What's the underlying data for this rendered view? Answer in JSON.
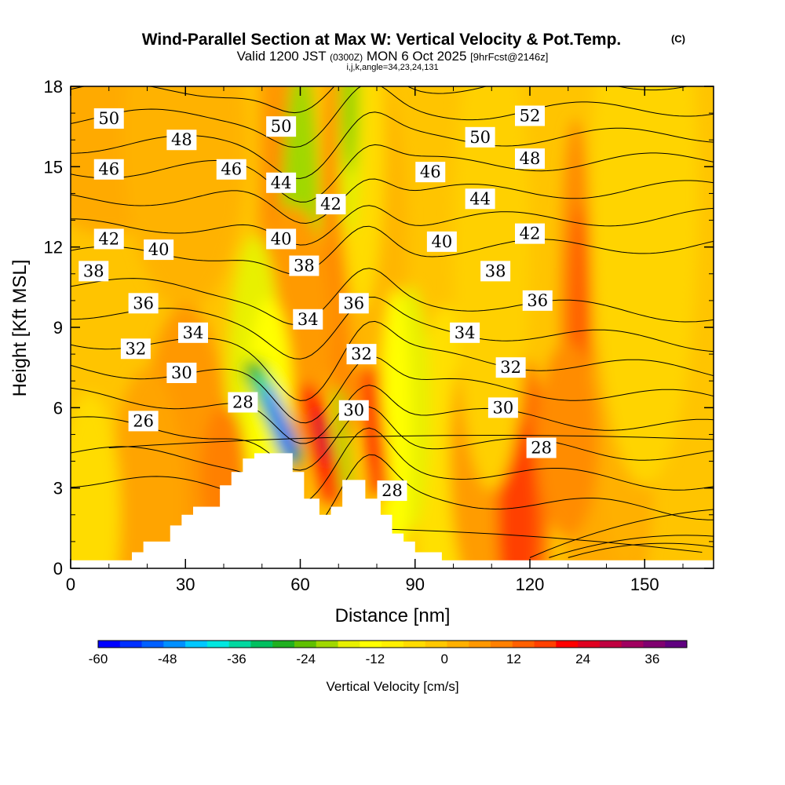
{
  "title": {
    "main": "Wind-Parallel Section at Max W: Vertical Velocity & Pot.Temp.",
    "copyright": "(C)",
    "valid_prefix": "Valid 1200 JST",
    "valid_utc": "(0300Z)",
    "valid_date": "MON 6 Oct 2025",
    "forecast": "[9hrFcst@2146z]",
    "params": "i,j,k,angle=34,23,24,131"
  },
  "chart_data": {
    "type": "heatmap",
    "xlabel": "Distance [nm]",
    "ylabel": "Height [Kft MSL]",
    "xlim": [
      0,
      168
    ],
    "ylim": [
      0,
      18
    ],
    "xticks": [
      "0",
      "30",
      "60",
      "90",
      "120",
      "150"
    ],
    "xtick_values": [
      0,
      30,
      60,
      90,
      120,
      150
    ],
    "yticks": [
      "0",
      "3",
      "6",
      "9",
      "12",
      "15",
      "18"
    ],
    "ytick_values": [
      0,
      3,
      6,
      9,
      12,
      15,
      18
    ],
    "colorbar": {
      "label": "Vertical Velocity [cm/s]",
      "range": [
        -60,
        42
      ],
      "tick_labels": [
        "-60",
        "-48",
        "-36",
        "-24",
        "-12",
        "0",
        "12",
        "24",
        "36"
      ],
      "tick_values": [
        -60,
        -48,
        -36,
        -24,
        -12,
        0,
        12,
        24,
        36
      ],
      "colors": [
        "#0000ff",
        "#0030ff",
        "#0060ff",
        "#0090ff",
        "#00c8ff",
        "#00e8e0",
        "#00d8a0",
        "#00c060",
        "#20b020",
        "#60c000",
        "#a0d800",
        "#e8f000",
        "#ffff00",
        "#fff000",
        "#ffdc00",
        "#ffc800",
        "#ffb000",
        "#ff9800",
        "#ff8000",
        "#ff6000",
        "#ff4000",
        "#ff0000",
        "#e00020",
        "#c00040",
        "#a00060",
        "#800070",
        "#600080"
      ]
    },
    "theta_contours": [
      {
        "label": "26",
        "theta": 26
      },
      {
        "label": "28",
        "theta": 28
      },
      {
        "label": "30",
        "theta": 30
      },
      {
        "label": "32",
        "theta": 32
      },
      {
        "label": "34",
        "theta": 34
      },
      {
        "label": "36",
        "theta": 36
      },
      {
        "label": "38",
        "theta": 38
      },
      {
        "label": "40",
        "theta": 40
      },
      {
        "label": "42",
        "theta": 42
      },
      {
        "label": "44",
        "theta": 44
      },
      {
        "label": "46",
        "theta": 46
      },
      {
        "label": "48",
        "theta": 48
      },
      {
        "label": "50",
        "theta": 50
      },
      {
        "label": "52",
        "theta": 52
      }
    ],
    "contour_label_positions": [
      {
        "text": "50",
        "x": 10,
        "y": 16.8
      },
      {
        "text": "48",
        "x": 29,
        "y": 16.0
      },
      {
        "text": "46",
        "x": 10,
        "y": 14.9
      },
      {
        "text": "46",
        "x": 42,
        "y": 14.9
      },
      {
        "text": "50",
        "x": 55,
        "y": 16.5
      },
      {
        "text": "44",
        "x": 55,
        "y": 14.4
      },
      {
        "text": "40",
        "x": 55,
        "y": 12.3
      },
      {
        "text": "42",
        "x": 68,
        "y": 13.6
      },
      {
        "text": "38",
        "x": 61,
        "y": 11.3
      },
      {
        "text": "42",
        "x": 10,
        "y": 12.3
      },
      {
        "text": "40",
        "x": 23,
        "y": 11.9
      },
      {
        "text": "38",
        "x": 6,
        "y": 11.1
      },
      {
        "text": "36",
        "x": 19,
        "y": 9.9
      },
      {
        "text": "34",
        "x": 32,
        "y": 8.8
      },
      {
        "text": "32",
        "x": 17,
        "y": 8.2
      },
      {
        "text": "30",
        "x": 29,
        "y": 7.3
      },
      {
        "text": "28",
        "x": 45,
        "y": 6.2
      },
      {
        "text": "26",
        "x": 19,
        "y": 5.5
      },
      {
        "text": "34",
        "x": 62,
        "y": 9.3
      },
      {
        "text": "36",
        "x": 74,
        "y": 9.9
      },
      {
        "text": "32",
        "x": 76,
        "y": 8.0
      },
      {
        "text": "30",
        "x": 74,
        "y": 5.9
      },
      {
        "text": "28",
        "x": 84,
        "y": 2.9
      },
      {
        "text": "46",
        "x": 94,
        "y": 14.8
      },
      {
        "text": "50",
        "x": 107,
        "y": 16.1
      },
      {
        "text": "52",
        "x": 120,
        "y": 16.9
      },
      {
        "text": "48",
        "x": 120,
        "y": 15.3
      },
      {
        "text": "44",
        "x": 107,
        "y": 13.8
      },
      {
        "text": "42",
        "x": 120,
        "y": 12.5
      },
      {
        "text": "40",
        "x": 97,
        "y": 12.2
      },
      {
        "text": "38",
        "x": 111,
        "y": 11.1
      },
      {
        "text": "36",
        "x": 122,
        "y": 10.0
      },
      {
        "text": "34",
        "x": 103,
        "y": 8.8
      },
      {
        "text": "32",
        "x": 115,
        "y": 7.5
      },
      {
        "text": "30",
        "x": 113,
        "y": 6.0
      },
      {
        "text": "28",
        "x": 123,
        "y": 4.5
      }
    ],
    "terrain_profile": [
      [
        0,
        0.3
      ],
      [
        16,
        0.3
      ],
      [
        16,
        0.6
      ],
      [
        19,
        0.6
      ],
      [
        19,
        1.0
      ],
      [
        26,
        1.0
      ],
      [
        26,
        1.6
      ],
      [
        29,
        1.6
      ],
      [
        29,
        2.0
      ],
      [
        32,
        2.0
      ],
      [
        32,
        2.3
      ],
      [
        39,
        2.3
      ],
      [
        39,
        3.1
      ],
      [
        42,
        3.1
      ],
      [
        42,
        3.6
      ],
      [
        45,
        3.6
      ],
      [
        45,
        4.1
      ],
      [
        48,
        4.1
      ],
      [
        48,
        4.3
      ],
      [
        58,
        4.3
      ],
      [
        58,
        3.6
      ],
      [
        61,
        3.6
      ],
      [
        61,
        2.6
      ],
      [
        65,
        2.6
      ],
      [
        65,
        2.0
      ],
      [
        68,
        2.0
      ],
      [
        68,
        2.3
      ],
      [
        71,
        2.3
      ],
      [
        71,
        3.3
      ],
      [
        77,
        3.3
      ],
      [
        77,
        2.6
      ],
      [
        81,
        2.6
      ],
      [
        81,
        2.0
      ],
      [
        84,
        2.0
      ],
      [
        84,
        1.3
      ],
      [
        87,
        1.3
      ],
      [
        87,
        1.0
      ],
      [
        90,
        1.0
      ],
      [
        90,
        0.6
      ],
      [
        97,
        0.6
      ],
      [
        97,
        0.3
      ],
      [
        168,
        0.3
      ]
    ]
  }
}
